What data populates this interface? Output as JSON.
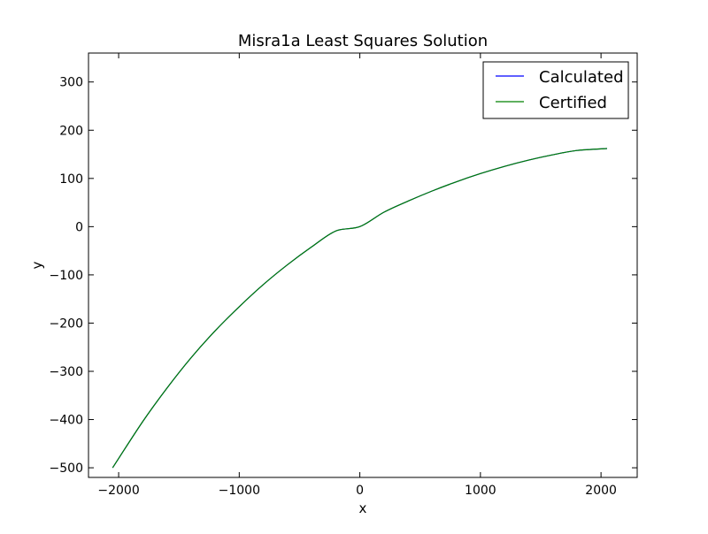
{
  "chart_data": {
    "type": "line",
    "title": "Misra1a Least Squares Solution",
    "xlabel": "x",
    "ylabel": "y",
    "xlim": [
      -2250,
      2300
    ],
    "ylim": [
      -520,
      360
    ],
    "grid": false,
    "legend_position": "top-right",
    "x_ticks": [
      -2000,
      -1000,
      0,
      1000,
      2000
    ],
    "x_tick_labels": [
      "−2000",
      "−1000",
      "0",
      "1000",
      "2000"
    ],
    "y_ticks": [
      -500,
      -400,
      -300,
      -200,
      -100,
      0,
      100,
      200,
      300
    ],
    "y_tick_labels": [
      "−500",
      "−400",
      "−300",
      "−200",
      "−100",
      "0",
      "100",
      "200",
      "300"
    ],
    "x": [
      -2050,
      -1800,
      -1600,
      -1400,
      -1200,
      -1000,
      -800,
      -600,
      -400,
      -200,
      0,
      200,
      400,
      600,
      800,
      1000,
      1200,
      1400,
      1600,
      1800,
      2050
    ],
    "series": [
      {
        "name": "Calculated",
        "color": "#0000ff",
        "values": [
          -500,
          -404,
          -335,
          -272,
          -216,
          -166,
          -120,
          -79,
          -42,
          -9,
          0,
          30,
          53,
          74,
          93,
          110,
          125,
          138,
          149,
          158,
          162
        ]
      },
      {
        "name": "Certified",
        "color": "#008000",
        "values": [
          -500,
          -404,
          -335,
          -272,
          -216,
          -166,
          -120,
          -79,
          -42,
          -9,
          0,
          30,
          53,
          74,
          93,
          110,
          125,
          138,
          149,
          158,
          162
        ]
      }
    ]
  }
}
